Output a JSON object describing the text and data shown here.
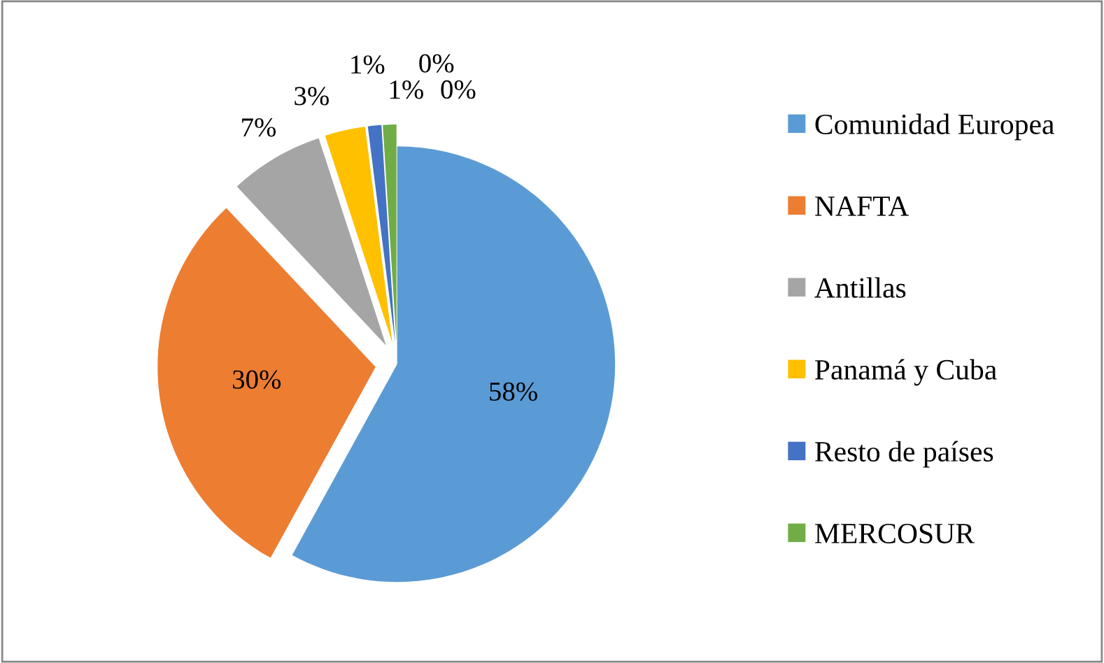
{
  "chart_data": {
    "type": "pie",
    "categories": [
      "Comunidad Europea",
      "NAFTA",
      "Antillas",
      "Panamá y Cuba",
      "Resto de países",
      "MERCOSUR",
      null,
      null
    ],
    "values": [
      58,
      30,
      7,
      3,
      1,
      1,
      0,
      0
    ],
    "value_labels": [
      "58%",
      "30%",
      "7%",
      "3%",
      "1%",
      "1%",
      "0%",
      "0%"
    ],
    "colors": [
      "#5b9bd5",
      "#ed7d31",
      "#a5a5a5",
      "#ffc000",
      "#4472c4",
      "#70ad47",
      "#9dc3e6",
      "#c9c9c9"
    ],
    "legend": "right"
  }
}
